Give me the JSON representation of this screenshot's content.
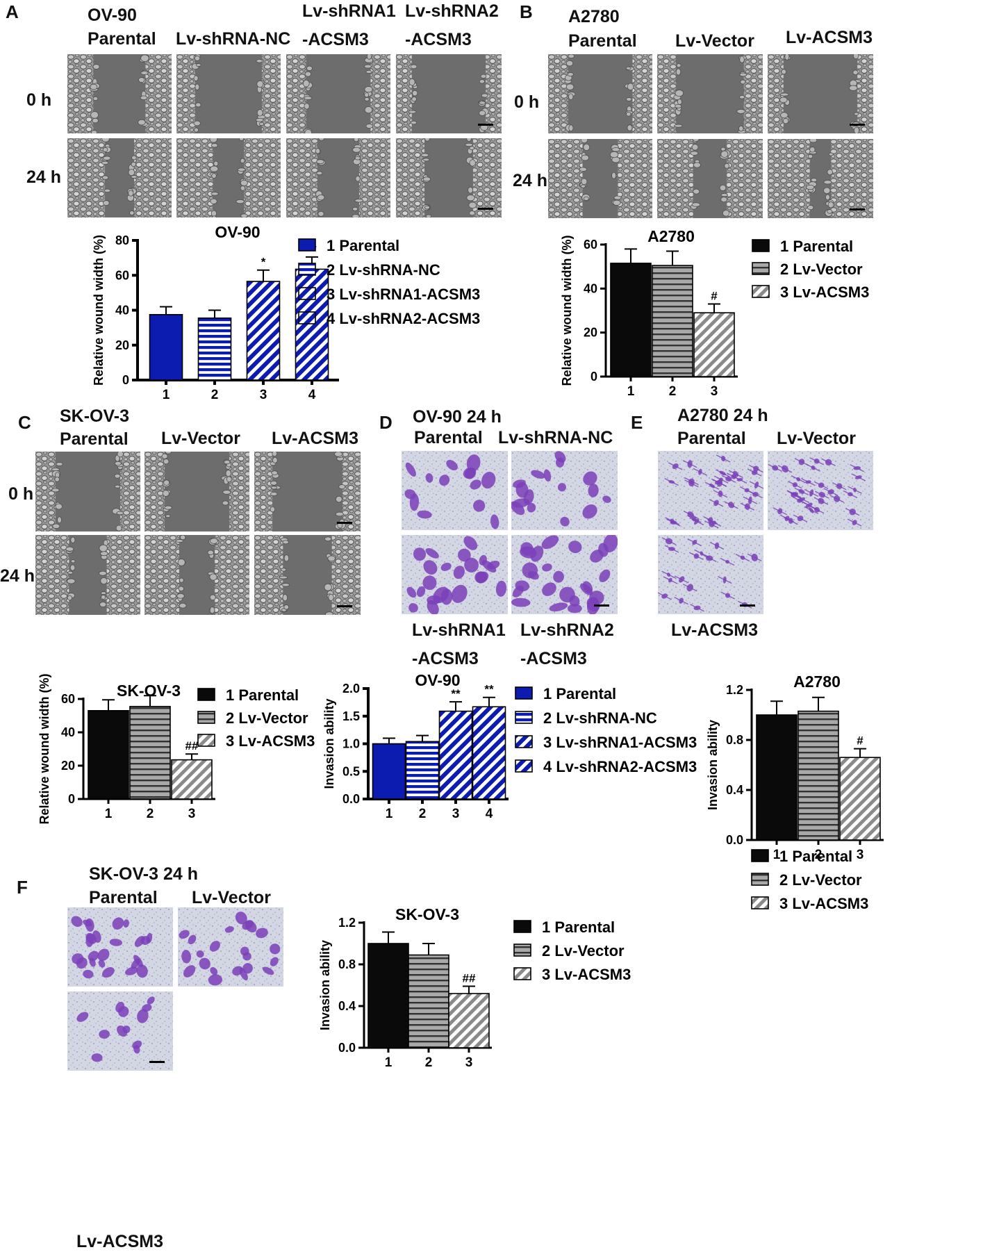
{
  "panels": {
    "A": {
      "letter": "A",
      "cell_line": "OV-90",
      "headers": [
        "Parental",
        "Lv-shRNA-NC",
        "Lv-shRNA1",
        "-ACSM3",
        "Lv-shRNA2",
        "-ACSM3"
      ],
      "rows": [
        "0 h",
        "24 h"
      ]
    },
    "B": {
      "letter": "B",
      "cell_line": "A2780",
      "headers": [
        "Parental",
        "Lv-Vector",
        "Lv-ACSM3"
      ],
      "rows": [
        "0 h",
        "24 h"
      ]
    },
    "C": {
      "letter": "C",
      "cell_line": "SK-OV-3",
      "headers": [
        "Parental",
        "Lv-Vector",
        "Lv-ACSM3"
      ],
      "rows": [
        "0 h",
        "24 h"
      ]
    },
    "D": {
      "letter": "D",
      "title": "OV-90 24 h",
      "headers": [
        "Parental",
        "Lv-shRNA-NC"
      ],
      "footers": [
        "Lv-shRNA1",
        "-ACSM3",
        "Lv-shRNA2",
        "-ACSM3"
      ]
    },
    "E": {
      "letter": "E",
      "title": "A2780 24 h",
      "headers": [
        "Parental",
        "Lv-Vector"
      ],
      "footers": [
        "Lv-ACSM3"
      ]
    },
    "F": {
      "letter": "F",
      "title": "SK-OV-3 24 h",
      "headers": [
        "Parental",
        "Lv-Vector"
      ],
      "footers": [
        "Lv-ACSM3"
      ]
    }
  },
  "colors": {
    "navy": "#0c1bb0",
    "black": "#0a0a0a",
    "gray": "#8a8a8a",
    "phase_bg": "#6d6d6d",
    "stain_bg": "#d6d9e6",
    "stain_cell": "#7b3fb8"
  },
  "chart_data": [
    {
      "id": "A",
      "type": "bar",
      "title": "OV-90",
      "ylabel": "Relative wound width (%)",
      "ylim": [
        0,
        80
      ],
      "yticks": [
        "0",
        "20",
        "40",
        "60",
        "80"
      ],
      "categories": [
        "1",
        "2",
        "3",
        "4"
      ],
      "values": [
        37.5,
        35.5,
        56.5,
        63.5
      ],
      "errors": [
        4.5,
        4.5,
        6.5,
        7
      ],
      "significance": [
        "",
        "",
        "*",
        "**"
      ],
      "legend": [
        "1 Parental",
        "2 Lv-shRNA-NC",
        "3 Lv-shRNA1-ACSM3",
        "4 Lv-shRNA2-ACSM3"
      ],
      "styles": [
        "solid-navy",
        "hstripe-navy",
        "diag-navy",
        "diag-navy"
      ]
    },
    {
      "id": "B",
      "type": "bar",
      "title": "A2780",
      "ylabel": "Relative wound width (%)",
      "ylim": [
        0,
        60
      ],
      "yticks": [
        "0",
        "20",
        "40",
        "60"
      ],
      "categories": [
        "1",
        "2",
        "3"
      ],
      "values": [
        51.5,
        50.5,
        29
      ],
      "errors": [
        6.5,
        6.5,
        4
      ],
      "significance": [
        "",
        "",
        "#"
      ],
      "legend": [
        "1 Parental",
        "2 Lv-Vector",
        "3 Lv-ACSM3"
      ],
      "styles": [
        "solid-black",
        "hstripe-gray",
        "diag-gray"
      ]
    },
    {
      "id": "C",
      "type": "bar",
      "title": "SK-OV-3",
      "ylabel": "Relative wound width (%)",
      "ylim": [
        0,
        60
      ],
      "yticks": [
        "0",
        "20",
        "40",
        "60"
      ],
      "categories": [
        "1",
        "2",
        "3"
      ],
      "values": [
        53,
        55.5,
        23.5
      ],
      "errors": [
        6.5,
        6.5,
        3.5
      ],
      "significance": [
        "",
        "",
        "##"
      ],
      "legend": [
        "1 Parental",
        "2 Lv-Vector",
        "3 Lv-ACSM3"
      ],
      "styles": [
        "solid-black",
        "hstripe-gray",
        "diag-gray"
      ]
    },
    {
      "id": "D",
      "type": "bar",
      "title": "OV-90",
      "ylabel": "Invasion ability",
      "ylim": [
        0,
        2.0
      ],
      "yticks": [
        "0.0",
        "0.5",
        "1.0",
        "1.5",
        "2.0"
      ],
      "categories": [
        "1",
        "2",
        "3",
        "4"
      ],
      "values": [
        1.0,
        1.04,
        1.59,
        1.67
      ],
      "errors": [
        0.1,
        0.11,
        0.17,
        0.17
      ],
      "significance": [
        "",
        "",
        "**",
        "**"
      ],
      "legend": [
        "1 Parental",
        "2 Lv-shRNA-NC",
        "3 Lv-shRNA1-ACSM3",
        "4 Lv-shRNA2-ACSM3"
      ],
      "styles": [
        "solid-navy",
        "hstripe-navy",
        "diag-navy",
        "diag-navy"
      ]
    },
    {
      "id": "E",
      "type": "bar",
      "title": "A2780",
      "ylabel": "Invasion ability",
      "ylim": [
        0,
        1.2
      ],
      "yticks": [
        "0.0",
        "0.4",
        "0.8",
        "1.2"
      ],
      "categories": [
        "1",
        "2",
        "3"
      ],
      "values": [
        1.0,
        1.03,
        0.66
      ],
      "errors": [
        0.11,
        0.11,
        0.07
      ],
      "significance": [
        "",
        "",
        "#"
      ],
      "legend": [
        "1 Parental",
        "2 Lv-Vector",
        "3 Lv-ACSM3"
      ],
      "styles": [
        "solid-black",
        "hstripe-gray",
        "diag-gray"
      ]
    },
    {
      "id": "F",
      "type": "bar",
      "title": "SK-OV-3",
      "ylabel": "Invasion ability",
      "ylim": [
        0,
        1.2
      ],
      "yticks": [
        "0.0",
        "0.4",
        "0.8",
        "1.2"
      ],
      "categories": [
        "1",
        "2",
        "3"
      ],
      "values": [
        1.0,
        0.89,
        0.52
      ],
      "errors": [
        0.11,
        0.11,
        0.07
      ],
      "significance": [
        "",
        "",
        "##"
      ],
      "legend": [
        "1 Parental",
        "2 Lv-Vector",
        "3 Lv-ACSM3"
      ],
      "styles": [
        "solid-black",
        "hstripe-gray",
        "diag-gray"
      ]
    }
  ]
}
